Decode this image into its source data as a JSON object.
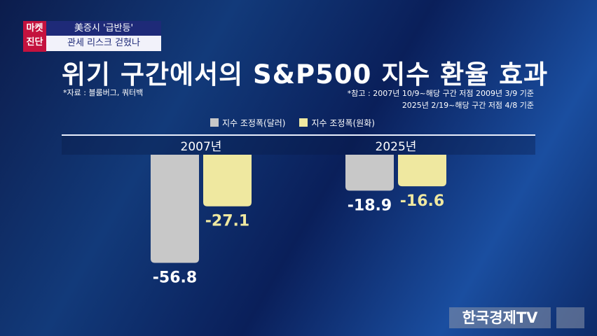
{
  "header": {
    "badge": "마켓\n진단",
    "badge_line1": "마켓",
    "badge_line2": "진단",
    "headline1": "美증시 '급반등'",
    "headline2": "관세 리스크 걷혔나"
  },
  "source": "*자료 : 블룸버그, 쿼터백",
  "note": [
    "*참고 :  2007년 10/9~해당 구간 저점 2009년 3/9 기준",
    "2025년 2/19~해당 구간 저점 4/8 기준"
  ],
  "logo": "한국경제TV",
  "chart_data": {
    "type": "bar",
    "title": "위기 구간에서의 S&P500 지수 환율 효과",
    "categories": [
      "2007년",
      "2025년"
    ],
    "series": [
      {
        "name": "지수 조정폭(달러)",
        "values": [
          -56.8,
          -18.9
        ],
        "labels": [
          "-56.8",
          "-18.9"
        ],
        "color": "#c8c8c8"
      },
      {
        "name": "지수 조정폭(원화)",
        "values": [
          -27.1,
          -16.6
        ],
        "labels": [
          "-27.1",
          "-16.6"
        ],
        "color": "#efe8a0"
      }
    ],
    "ylim": [
      -60,
      0
    ],
    "legend": "top-center",
    "grid": false
  }
}
